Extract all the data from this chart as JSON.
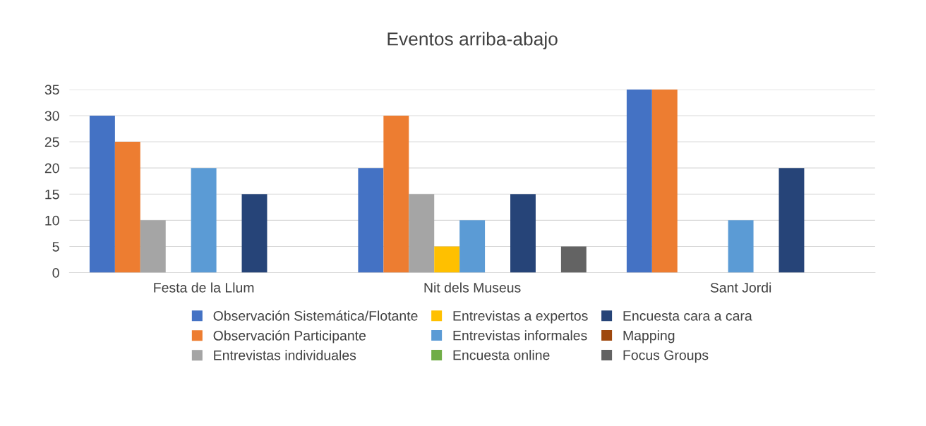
{
  "chart_data": {
    "type": "bar",
    "title": "Eventos arriba-abajo",
    "categories": [
      "Festa de la Llum",
      "Nit dels Museus",
      "Sant Jordi"
    ],
    "series": [
      {
        "name": "Observación Sistemática/Flotante",
        "color": "#4472c4",
        "values": [
          30,
          20,
          35
        ]
      },
      {
        "name": "Observación Participante",
        "color": "#ed7d31",
        "values": [
          25,
          30,
          35
        ]
      },
      {
        "name": "Entrevistas individuales",
        "color": "#a5a5a5",
        "values": [
          10,
          15,
          0
        ]
      },
      {
        "name": "Entrevistas a expertos",
        "color": "#ffc000",
        "values": [
          0,
          5,
          0
        ]
      },
      {
        "name": "Entrevistas informales",
        "color": "#5b9bd5",
        "values": [
          20,
          10,
          10
        ]
      },
      {
        "name": "Encuesta online",
        "color": "#70ad47",
        "values": [
          0,
          0,
          0
        ]
      },
      {
        "name": "Encuesta cara a cara",
        "color": "#264478",
        "values": [
          15,
          15,
          20
        ]
      },
      {
        "name": "Mapping",
        "color": "#9e480e",
        "values": [
          0,
          0,
          0
        ]
      },
      {
        "name": "Focus Groups",
        "color": "#636363",
        "values": [
          0,
          5,
          0
        ]
      }
    ],
    "ylim": [
      0,
      35
    ],
    "yticks": [
      0,
      5,
      10,
      15,
      20,
      25,
      30,
      35
    ],
    "grid": "y",
    "legend": "bottom"
  }
}
